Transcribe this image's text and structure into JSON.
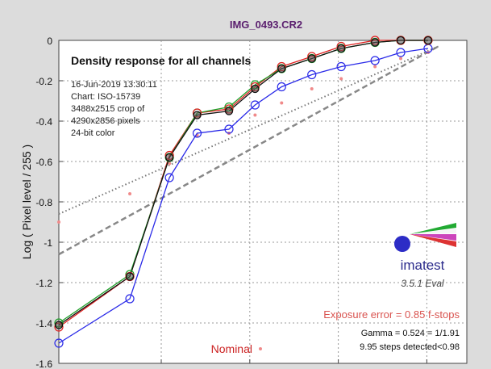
{
  "window": {
    "title": "IMG_0493.CR2"
  },
  "chart_data": {
    "type": "line",
    "title": "IMG_0493.CR2",
    "subtitle": "Density response for all channels",
    "ylabel": "Log ( Pixel level / 255 )",
    "xlabel": "",
    "ylim": [
      -1.6,
      0
    ],
    "yticks": [
      0,
      -0.2,
      -0.4,
      -0.6,
      -0.8,
      -1,
      -1.2,
      -1.4,
      -1.6
    ],
    "ytick_labels": [
      "0",
      "-0.2",
      "-0.4",
      "-0.6",
      "-0.8",
      "-1",
      "-1.2",
      "-1.4",
      "-1.6"
    ],
    "xlim": [
      0,
      10
    ],
    "xgrid": [
      2.51,
      4.68,
      6.85,
      9.02
    ],
    "grid": true,
    "info_lines": [
      "16-Jun-2019 13:30:11",
      "Chart: ISO-15739",
      "3488x2515 crop of",
      "4290x2856 pixels",
      "24-bit color"
    ],
    "x": [
      0,
      1.74,
      2.71,
      3.39,
      4.17,
      4.81,
      5.46,
      6.2,
      6.92,
      7.75,
      8.38,
      9.05
    ],
    "series": [
      {
        "key": "red",
        "color": "#e02020",
        "values": [
          -1.42,
          -1.17,
          -0.57,
          -0.36,
          -0.34,
          -0.23,
          -0.13,
          -0.08,
          -0.03,
          0.0,
          0.0,
          0.0
        ]
      },
      {
        "key": "green",
        "color": "#1fa02a",
        "values": [
          -1.4,
          -1.16,
          -0.58,
          -0.36,
          -0.33,
          -0.22,
          -0.14,
          -0.09,
          -0.04,
          -0.01,
          0.0,
          0.0
        ]
      },
      {
        "key": "blue",
        "color": "#2a2ae8",
        "values": [
          -1.5,
          -1.28,
          -0.68,
          -0.46,
          -0.44,
          -0.32,
          -0.23,
          -0.17,
          -0.13,
          -0.1,
          -0.06,
          -0.04
        ]
      },
      {
        "key": "luminance",
        "color": "#111111",
        "values": [
          -1.41,
          -1.17,
          -0.58,
          -0.37,
          -0.35,
          -0.24,
          -0.14,
          -0.09,
          -0.04,
          -0.01,
          0.0,
          0.0
        ]
      }
    ],
    "nominal": {
      "label": "Nominal",
      "color": "#f08a8a",
      "x": [
        0,
        1.74,
        2.71,
        3.39,
        4.17,
        4.81,
        5.46,
        6.2,
        6.92,
        7.75,
        8.38,
        9.05
      ],
      "values": [
        -0.9,
        -0.76,
        -0.61,
        -0.47,
        -0.46,
        -0.37,
        -0.31,
        -0.24,
        -0.19,
        -0.13,
        -0.09,
        -0.06
      ]
    },
    "fit_lines": [
      {
        "style": "dashed",
        "color": "#888888",
        "x": [
          0,
          9.3
        ],
        "values": [
          -1.06,
          -0.03
        ]
      },
      {
        "style": "dotted",
        "color": "#777777",
        "x": [
          0,
          9.3
        ],
        "values": [
          -0.86,
          -0.03
        ]
      }
    ],
    "annotations": {
      "exposure_error": "Exposure error = 0.85 f-stops",
      "exposure_color": "#d9534f",
      "gamma": "Gamma = 0.524 = 1/1.91",
      "steps": "9.95 steps detected<0.98"
    },
    "logo": {
      "text": "imatest",
      "version": "3.5.1  Eval"
    }
  }
}
